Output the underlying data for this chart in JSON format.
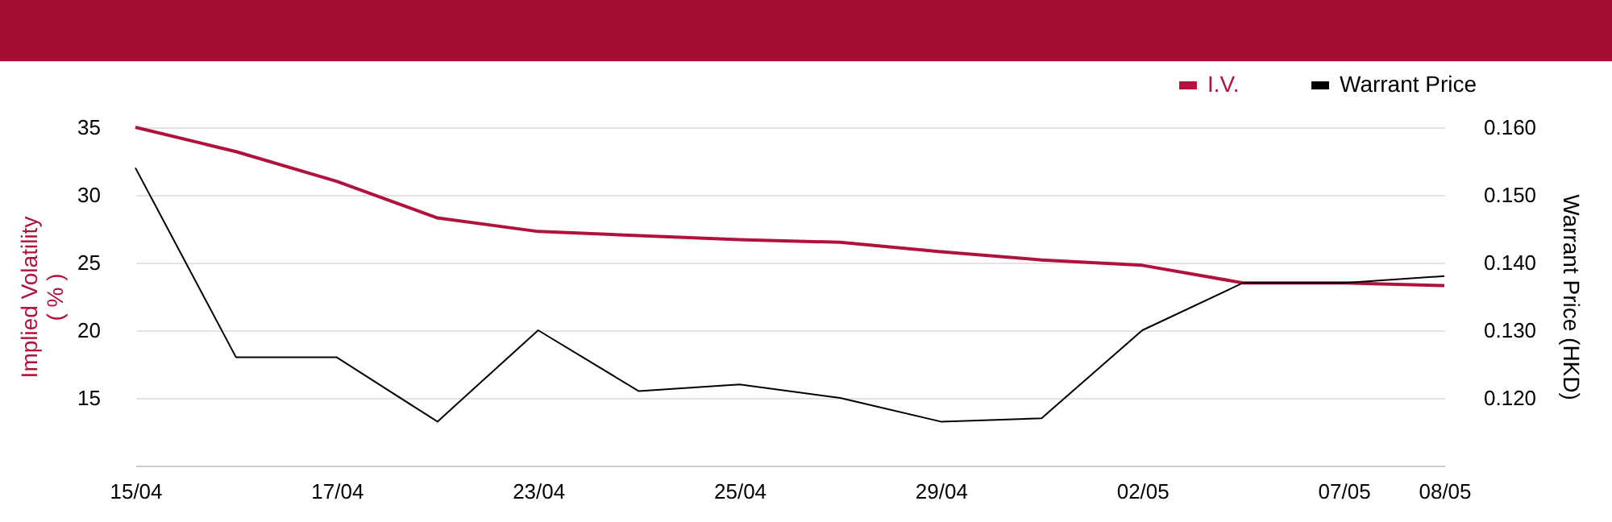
{
  "chart_data": {
    "type": "line",
    "categories": [
      "15/04",
      null,
      "17/04",
      null,
      "23/04",
      null,
      "25/04",
      null,
      "29/04",
      null,
      "02/05",
      null,
      "07/05",
      "08/05"
    ],
    "series": [
      {
        "name": "I.V.",
        "color": "#b0123c",
        "values": [
          35,
          33.2,
          31,
          28.3,
          27.3,
          27,
          26.7,
          26.5,
          25.8,
          25.2,
          24.8,
          23.5,
          23.5,
          23.3
        ]
      },
      {
        "name": "Warrant Price",
        "color": "#000000",
        "axis": "y2",
        "values": [
          0.154,
          0.126,
          0.126,
          0.1165,
          0.13,
          0.121,
          0.122,
          0.12,
          0.1165,
          0.117,
          0.13,
          0.137,
          0.137,
          0.138
        ]
      }
    ],
    "ylabel": "Implied Volatility ( % )",
    "y2label": "Warrant Price (HKD)",
    "ylim": [
      10,
      35
    ],
    "yticks": [
      15,
      20,
      25,
      30,
      35
    ],
    "y2lim": [
      0.11,
      0.16
    ],
    "y2ticks": [
      {
        "value": 0.12,
        "label": "0.120"
      },
      {
        "value": 0.13,
        "label": "0.130"
      },
      {
        "value": 0.14,
        "label": "0.140"
      },
      {
        "value": 0.15,
        "label": "0.150"
      },
      {
        "value": 0.16,
        "label": "0.160"
      }
    ],
    "grid": "y",
    "legend": "top right",
    "marker": "none",
    "line_style": "solid"
  }
}
